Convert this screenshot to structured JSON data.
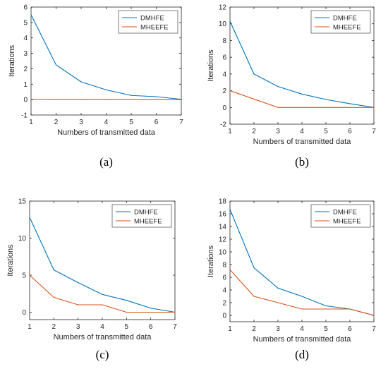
{
  "chart_data": [
    {
      "panel": "a",
      "caption": "(a)",
      "type": "line",
      "xlabel": "Numbers of transmitted data",
      "ylabel": "Iterations",
      "xlim": [
        1,
        7
      ],
      "ylim": [
        -1,
        6
      ],
      "xticks": [
        "1",
        "2",
        "3",
        "4",
        "5",
        "6",
        "7"
      ],
      "yticks": [
        "-1",
        "0",
        "1",
        "2",
        "3",
        "4",
        "5",
        "6"
      ],
      "legend": "top-right",
      "x": [
        1,
        2,
        3,
        4,
        5,
        6,
        7
      ],
      "series": [
        {
          "name": "DMHFE",
          "color": "#0072BD",
          "values": [
            5.5,
            2.25,
            1.15,
            0.63,
            0.27,
            0.19,
            0.02
          ]
        },
        {
          "name": "MHEEFE",
          "color": "#D95319",
          "values": [
            0.03,
            0.0,
            0.0,
            0.0,
            0.0,
            0.0,
            0.0
          ]
        }
      ]
    },
    {
      "panel": "b",
      "caption": "(b)",
      "type": "line",
      "xlabel": "Numbers of transmitted data",
      "ylabel": "Iterations",
      "xlim": [
        1,
        7
      ],
      "ylim": [
        -2,
        12
      ],
      "xticks": [
        "1",
        "2",
        "3",
        "4",
        "5",
        "6",
        "7"
      ],
      "yticks": [
        "-2",
        "0",
        "2",
        "4",
        "6",
        "8",
        "10",
        "12"
      ],
      "legend": "top-right",
      "x": [
        1,
        2,
        3,
        4,
        5,
        6,
        7
      ],
      "series": [
        {
          "name": "DMHFE",
          "color": "#0072BD",
          "values": [
            10.3,
            4.0,
            2.5,
            1.6,
            0.95,
            0.45,
            0.0
          ]
        },
        {
          "name": "MHEEFE",
          "color": "#D95319",
          "values": [
            2.0,
            1.0,
            0.0,
            0.0,
            0.0,
            0.0,
            0.0
          ]
        }
      ]
    },
    {
      "panel": "c",
      "caption": "(c)",
      "type": "line",
      "xlabel": "Numbers of transmitted data",
      "ylabel": "Iterations",
      "xlim": [
        1,
        7
      ],
      "ylim": [
        -1,
        15
      ],
      "xticks": [
        "1",
        "2",
        "3",
        "4",
        "5",
        "6",
        "7"
      ],
      "yticks": [
        "0",
        "5",
        "10",
        "15"
      ],
      "legend": "top-right",
      "x": [
        1,
        2,
        3,
        4,
        5,
        6,
        7
      ],
      "series": [
        {
          "name": "DMHFE",
          "color": "#0072BD",
          "values": [
            12.8,
            5.7,
            4.0,
            2.4,
            1.6,
            0.55,
            0.0
          ]
        },
        {
          "name": "MHEEFE",
          "color": "#D95319",
          "values": [
            5.0,
            2.0,
            1.0,
            1.0,
            0.0,
            0.0,
            0.0
          ]
        }
      ]
    },
    {
      "panel": "d",
      "caption": "(d)",
      "type": "line",
      "xlabel": "Numbers of transmitted data",
      "ylabel": "Iterations",
      "xlim": [
        1,
        7
      ],
      "ylim": [
        -1,
        18
      ],
      "xticks": [
        "1",
        "2",
        "3",
        "4",
        "5",
        "6",
        "7"
      ],
      "yticks": [
        "0",
        "2",
        "4",
        "6",
        "8",
        "10",
        "12",
        "14",
        "16",
        "18"
      ],
      "legend": "top-right",
      "x": [
        1,
        2,
        3,
        4,
        5,
        6,
        7
      ],
      "series": [
        {
          "name": "DMHFE",
          "color": "#0072BD",
          "values": [
            16.7,
            7.5,
            4.3,
            3.0,
            1.5,
            1.0,
            0.0
          ]
        },
        {
          "name": "MHEEFE",
          "color": "#D95319",
          "values": [
            7.2,
            3.0,
            2.0,
            1.0,
            1.0,
            1.0,
            0.0
          ]
        }
      ]
    }
  ]
}
